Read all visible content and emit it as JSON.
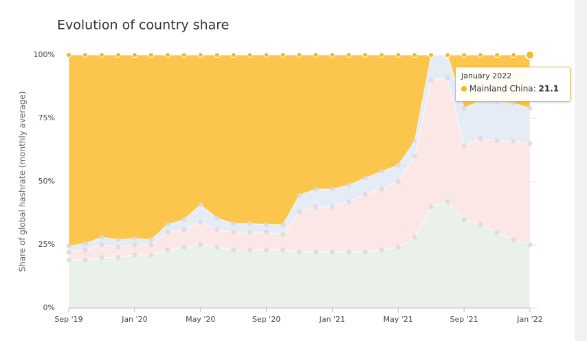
{
  "chart_data": {
    "type": "stacked_area",
    "title": "Evolution of country share",
    "y_label": "Share of global hashrate (monthly average)",
    "categories": [
      "Sep '19",
      null,
      null,
      null,
      "Jan '20",
      null,
      null,
      null,
      "May '20",
      null,
      null,
      null,
      "Sep '20",
      null,
      null,
      null,
      "Jan '21",
      null,
      null,
      null,
      "May '21",
      null,
      null,
      null,
      "Sep '21",
      null,
      null,
      null,
      "Jan '22"
    ],
    "ylim": [
      0,
      100
    ],
    "yticks": [
      {
        "value": 0,
        "label": "0%"
      },
      {
        "value": 25,
        "label": "25%"
      },
      {
        "value": 50,
        "label": "50%"
      },
      {
        "value": 75,
        "label": "75%"
      },
      {
        "value": 100,
        "label": "100%"
      }
    ],
    "grid": true,
    "series": [
      {
        "color": "#e9f1ea",
        "values": [
          19,
          19,
          20,
          20,
          21,
          21,
          23,
          24,
          25,
          24,
          23,
          23,
          23,
          23,
          22,
          22,
          22,
          22,
          22,
          23,
          24,
          28,
          40,
          42,
          35,
          33,
          30,
          27,
          25
        ]
      },
      {
        "color": "#fbe8e6",
        "values": [
          3,
          4,
          5,
          4,
          4,
          4,
          7,
          7,
          9,
          7,
          7,
          7,
          7,
          6,
          16,
          18,
          18,
          20,
          23,
          24,
          26,
          32,
          50,
          49,
          29,
          34,
          36,
          39,
          40
        ]
      },
      {
        "color": "#e5ecf5",
        "values": [
          2.5,
          2.5,
          3,
          3,
          2.5,
          2,
          3,
          4,
          6.8,
          4.6,
          3.4,
          3.4,
          3,
          3.9,
          6.6,
          7,
          7,
          6.6,
          6.4,
          7,
          6.5,
          6,
          10,
          9,
          15,
          15,
          15.5,
          15,
          13.9
        ]
      },
      {
        "name": "Mainland China",
        "color": "#fcc64d",
        "values": [
          75.5,
          74.5,
          72,
          73,
          72.5,
          73,
          67,
          65,
          59.2,
          64.4,
          66.6,
          66.6,
          67,
          67.1,
          55.4,
          53,
          53,
          51.4,
          48.6,
          46,
          43.5,
          34,
          0,
          0,
          21,
          18,
          18.5,
          19,
          21.1
        ]
      }
    ],
    "tooltip": {
      "title": "January 2022",
      "index": 28,
      "series": 3
    }
  }
}
